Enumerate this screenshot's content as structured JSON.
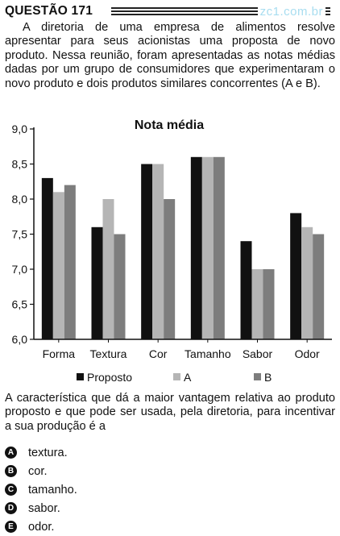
{
  "header": {
    "title": "QUESTÃO 171",
    "watermark": "zc1.com.br"
  },
  "intro_text": "A diretoria de uma empresa de alimentos resolve apresentar para seus acionistas uma proposta de novo produto. Nessa reunião, foram apresentadas as notas médias dadas por um grupo de consumidores que experimentaram o novo produto e dois produtos similares concorrentes (A e B).",
  "chart_data": {
    "type": "bar",
    "title": "Nota média",
    "categories": [
      "Forma",
      "Textura",
      "Cor",
      "Tamanho",
      "Sabor",
      "Odor"
    ],
    "series": [
      {
        "name": "Proposto",
        "color": "#111111",
        "values": [
          8.3,
          7.6,
          8.5,
          8.6,
          7.4,
          7.8
        ]
      },
      {
        "name": "A",
        "color": "#b5b5b5",
        "values": [
          8.1,
          8.0,
          8.5,
          8.6,
          7.0,
          7.6
        ]
      },
      {
        "name": "B",
        "color": "#7d7d7d",
        "values": [
          8.2,
          7.5,
          8.0,
          8.6,
          7.0,
          7.5
        ]
      }
    ],
    "ylim": [
      6.0,
      9.0
    ],
    "yticks": [
      "6,0",
      "6,5",
      "7,0",
      "7,5",
      "8,0",
      "8,5",
      "9,0"
    ],
    "ytick_values": [
      6.0,
      6.5,
      7.0,
      7.5,
      8.0,
      8.5,
      9.0
    ],
    "grid": false,
    "legend_position": "bottom"
  },
  "question_text": "A característica que dá a maior vantagem relativa ao produto proposto e que pode ser usada, pela diretoria, para incentivar a sua produção é a",
  "options": [
    {
      "letter": "A",
      "text": "textura."
    },
    {
      "letter": "B",
      "text": "cor."
    },
    {
      "letter": "C",
      "text": "tamanho."
    },
    {
      "letter": "D",
      "text": "sabor."
    },
    {
      "letter": "E",
      "text": "odor."
    }
  ]
}
